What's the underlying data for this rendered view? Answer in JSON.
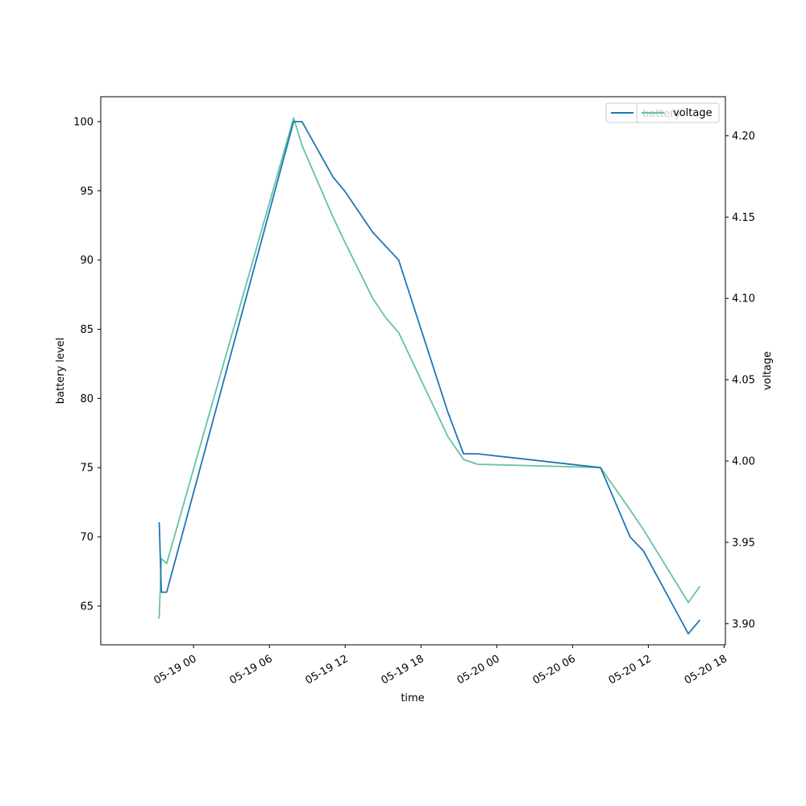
{
  "chart_data": {
    "type": "line",
    "xlabel": "time",
    "ylabel_left": "battery level",
    "ylabel_right": "voltage",
    "x_tick_labels": [
      "05-19 00",
      "05-19 06",
      "05-19 12",
      "05-19 18",
      "05-20 00",
      "05-20 06",
      "05-20 12",
      "05-20 18"
    ],
    "x_ticks": [
      "2024-05-19T00:00",
      "2024-05-19T06:00",
      "2024-05-19T12:00",
      "2024-05-19T18:00",
      "2024-05-20T00:00",
      "2024-05-20T06:00",
      "2024-05-20T12:00",
      "2024-05-20T18:00"
    ],
    "xlim": [
      "2024-05-18T16:39",
      "2024-05-20T18:06"
    ],
    "ylim_left": [
      62.2,
      101.8
    ],
    "yticks_left": [
      65,
      70,
      75,
      80,
      85,
      90,
      95,
      100
    ],
    "ylim_right": [
      3.887,
      4.224
    ],
    "yticks_right": [
      "3.90",
      "3.95",
      "4.00",
      "4.05",
      "4.10",
      "4.15",
      "4.20"
    ],
    "legend_position": "top-right",
    "series": [
      {
        "name": "battery",
        "axis": "left",
        "color": "#1f77b4",
        "x": [
          "2024-05-18T21:13",
          "2024-05-18T21:17",
          "2024-05-18T21:27",
          "2024-05-18T21:52",
          "2024-05-19T07:55",
          "2024-05-19T08:35",
          "2024-05-19T11:02",
          "2024-05-19T11:57",
          "2024-05-19T14:11",
          "2024-05-19T16:14",
          "2024-05-19T20:08",
          "2024-05-19T21:22",
          "2024-05-19T22:28",
          "2024-05-20T08:13",
          "2024-05-20T10:33",
          "2024-05-20T11:36",
          "2024-05-20T15:10",
          "2024-05-20T16:05"
        ],
        "y": [
          71,
          71,
          66,
          66,
          100,
          100,
          96,
          95,
          92,
          90,
          79,
          76,
          76,
          75,
          70,
          69,
          63,
          64
        ]
      },
      {
        "name": "voltage",
        "axis": "right",
        "color": "#66c2a5",
        "x": [
          "2024-05-18T21:13",
          "2024-05-18T21:17",
          "2024-05-18T21:27",
          "2024-05-18T21:52",
          "2024-05-19T07:55",
          "2024-05-19T08:35",
          "2024-05-19T11:02",
          "2024-05-19T11:57",
          "2024-05-19T14:11",
          "2024-05-19T15:13",
          "2024-05-19T16:14",
          "2024-05-19T20:08",
          "2024-05-19T21:22",
          "2024-05-19T22:28",
          "2024-05-20T08:13",
          "2024-05-20T10:33",
          "2024-05-20T11:36",
          "2024-05-20T15:10",
          "2024-05-20T16:05"
        ],
        "y": [
          3.903,
          3.905,
          3.94,
          3.937,
          4.211,
          4.194,
          4.15,
          4.135,
          4.1,
          4.088,
          4.079,
          4.015,
          4.001,
          3.998,
          3.996,
          3.97,
          3.958,
          3.913,
          3.923
        ]
      }
    ]
  }
}
